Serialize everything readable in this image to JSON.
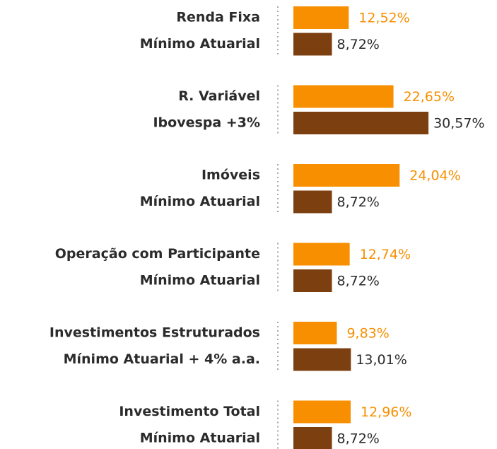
{
  "chart_data": {
    "type": "bar",
    "orientation": "horizontal",
    "categories": [
      "Renda Fixa",
      "Mínimo Atuarial",
      "R. Variável",
      "Ibovespa +3%",
      "Imóveis",
      "Mínimo Atuarial",
      "Operação com Participante",
      "Mínimo Atuarial",
      "Investimentos Estruturados",
      "Mínimo Atuarial + 4% a.a.",
      "Investimento Total",
      "Mínimo Atuarial"
    ],
    "values": [
      12.52,
      8.72,
      22.65,
      30.57,
      24.04,
      8.72,
      12.74,
      8.72,
      9.83,
      13.01,
      12.96,
      8.72
    ],
    "value_labels": [
      "12,52%",
      "8,72%",
      "22,65%",
      "30,57%",
      "24,04%",
      "8,72%",
      "12,74%",
      "8,72%",
      "9,83%",
      "13,01%",
      "12,96%",
      "8,72%"
    ],
    "colors": [
      "#f78f00",
      "#7b3f10",
      "#f78f00",
      "#7b3f10",
      "#f78f00",
      "#7b3f10",
      "#f78f00",
      "#7b3f10",
      "#f78f00",
      "#7b3f10",
      "#f78f00",
      "#7b3f10"
    ],
    "label_colors": [
      "#f78f00",
      "#2b2b2b",
      "#f78f00",
      "#2b2b2b",
      "#f78f00",
      "#2b2b2b",
      "#f78f00",
      "#2b2b2b",
      "#f78f00",
      "#2b2b2b",
      "#f78f00",
      "#2b2b2b"
    ]
  }
}
